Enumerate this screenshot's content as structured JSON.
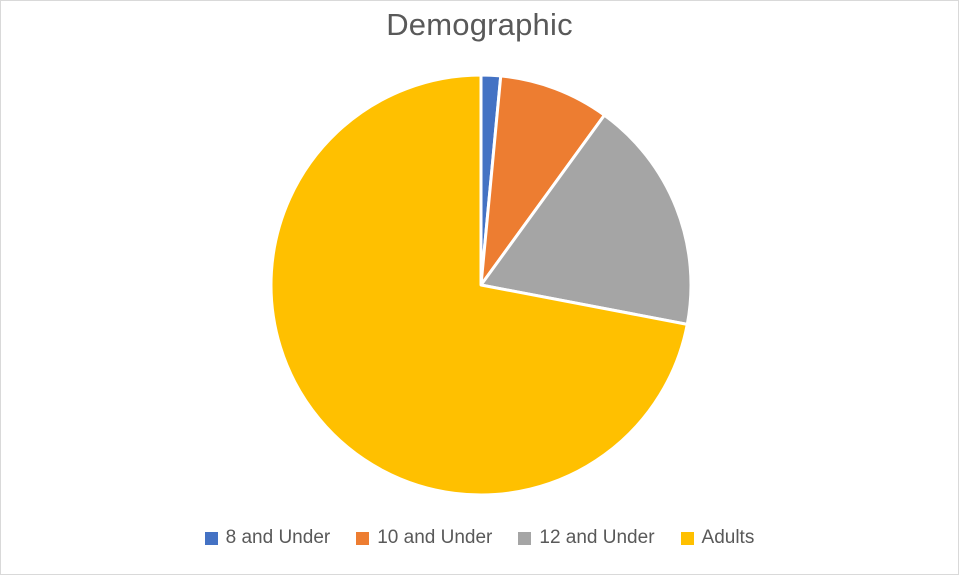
{
  "chart_data": {
    "type": "pie",
    "title": "Demographic",
    "categories": [
      "8 and Under",
      "10 and Under",
      "12 and Under",
      "Adults"
    ],
    "values": [
      1.5,
      8.5,
      18.0,
      72.0
    ],
    "colors": [
      "#4472C4",
      "#ED7D31",
      "#A5A5A5",
      "#FFC000"
    ],
    "start_angle_deg": 0,
    "direction": "clockwise",
    "legend_position": "bottom"
  }
}
